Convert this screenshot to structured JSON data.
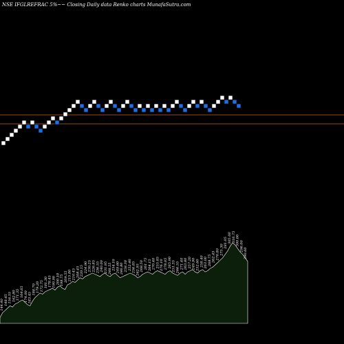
{
  "chart_data": {
    "type": "renko",
    "title": "NSE IFGLREFRAC 5%~~ Closing Daily data  Renko  charts MunafaSutra.com",
    "colors": {
      "background": "#000000",
      "up_brick": "#ffffff",
      "down_brick": "#1e6ee6",
      "brick_border": "#000000",
      "reference_line": "#c8641e",
      "volume_fill": "#0b1f0b",
      "volume_outline": "#ffffff",
      "labels": "#ffffff"
    },
    "reference_lines": [
      "upper",
      "lower"
    ],
    "bricks": [
      {
        "dir": "up",
        "level": 0
      },
      {
        "dir": "up",
        "level": 1
      },
      {
        "dir": "up",
        "level": 2
      },
      {
        "dir": "up",
        "level": 3
      },
      {
        "dir": "up",
        "level": 4
      },
      {
        "dir": "up",
        "level": 5
      },
      {
        "dir": "down",
        "level": 4
      },
      {
        "dir": "up",
        "level": 5
      },
      {
        "dir": "down",
        "level": 4
      },
      {
        "dir": "down",
        "level": 3
      },
      {
        "dir": "up",
        "level": 4
      },
      {
        "dir": "up",
        "level": 5
      },
      {
        "dir": "up",
        "level": 6
      },
      {
        "dir": "down",
        "level": 5
      },
      {
        "dir": "up",
        "level": 6
      },
      {
        "dir": "up",
        "level": 7
      },
      {
        "dir": "up",
        "level": 8
      },
      {
        "dir": "up",
        "level": 9
      },
      {
        "dir": "up",
        "level": 10
      },
      {
        "dir": "down",
        "level": 9
      },
      {
        "dir": "down",
        "level": 8
      },
      {
        "dir": "up",
        "level": 9
      },
      {
        "dir": "up",
        "level": 10
      },
      {
        "dir": "down",
        "level": 9
      },
      {
        "dir": "down",
        "level": 8
      },
      {
        "dir": "up",
        "level": 9
      },
      {
        "dir": "up",
        "level": 10
      },
      {
        "dir": "down",
        "level": 9
      },
      {
        "dir": "down",
        "level": 8
      },
      {
        "dir": "up",
        "level": 9
      },
      {
        "dir": "up",
        "level": 10
      },
      {
        "dir": "down",
        "level": 9
      },
      {
        "dir": "down",
        "level": 8
      },
      {
        "dir": "up",
        "level": 9
      },
      {
        "dir": "down",
        "level": 8
      },
      {
        "dir": "up",
        "level": 9
      },
      {
        "dir": "down",
        "level": 8
      },
      {
        "dir": "up",
        "level": 9
      },
      {
        "dir": "down",
        "level": 8
      },
      {
        "dir": "up",
        "level": 9
      },
      {
        "dir": "down",
        "level": 8
      },
      {
        "dir": "up",
        "level": 9
      },
      {
        "dir": "up",
        "level": 10
      },
      {
        "dir": "down",
        "level": 9
      },
      {
        "dir": "down",
        "level": 8
      },
      {
        "dir": "up",
        "level": 9
      },
      {
        "dir": "up",
        "level": 10
      },
      {
        "dir": "down",
        "level": 9
      },
      {
        "dir": "up",
        "level": 10
      },
      {
        "dir": "down",
        "level": 9
      },
      {
        "dir": "down",
        "level": 8
      },
      {
        "dir": "up",
        "level": 9
      },
      {
        "dir": "up",
        "level": 10
      },
      {
        "dir": "up",
        "level": 11
      },
      {
        "dir": "down",
        "level": 10
      },
      {
        "dir": "up",
        "level": 11
      },
      {
        "dir": "down",
        "level": 10
      },
      {
        "dir": "down",
        "level": 9
      }
    ],
    "volume_profile": [
      10,
      18,
      22,
      26,
      30,
      28,
      33,
      35,
      38,
      40,
      36,
      32,
      30,
      38,
      44,
      48,
      52,
      50,
      54,
      56,
      58,
      60,
      57,
      62,
      64,
      60,
      58,
      66,
      68,
      72,
      70,
      74,
      78,
      76,
      80,
      82,
      84,
      86,
      84,
      82,
      80,
      84,
      86,
      82,
      80,
      84,
      86,
      82,
      78,
      80,
      82,
      84,
      86,
      84,
      82,
      78,
      80,
      84,
      86,
      88,
      86,
      84,
      88,
      90,
      88,
      86,
      84,
      88,
      90,
      86,
      84,
      82,
      86,
      88,
      84,
      88,
      90,
      92,
      88,
      86,
      90,
      92,
      88,
      90,
      94,
      96,
      100,
      104,
      108,
      112,
      118,
      124,
      132,
      138,
      134,
      128,
      122,
      118,
      112,
      106
    ],
    "value_labels": [
      "144.40",
      "148.45",
      "156.55",
      "162.80",
      "171.35",
      "164.65",
      "174.00",
      "183.45",
      "188.70",
      "179.20",
      "172.75",
      "181.30",
      "178.45",
      "190.90",
      "200.10",
      "198.75",
      "209.55",
      "215.80",
      "210.45",
      "208.45",
      "220.15",
      "224.90",
      "230.25",
      "226.85",
      "236.55",
      "240.00",
      "231.95",
      "248.55",
      "254.10",
      "249.60",
      "246.80",
      "258.30",
      "252.40",
      "256.85",
      "262.95",
      "268.50",
      "261.75",
      "264.15",
      "270.40",
      "255.85",
      "276.10",
      "278.05",
      "265.90",
      "251.35",
      "266.55",
      "271.40",
      "263.80",
      "257.20",
      "249.90",
      "252.60",
      "258.40",
      "263.00",
      "268.75",
      "262.45",
      "270.80",
      "275.30",
      "281.05",
      "305.00",
      "316.75",
      "300.00",
      "296.00",
      "290.60"
    ]
  }
}
